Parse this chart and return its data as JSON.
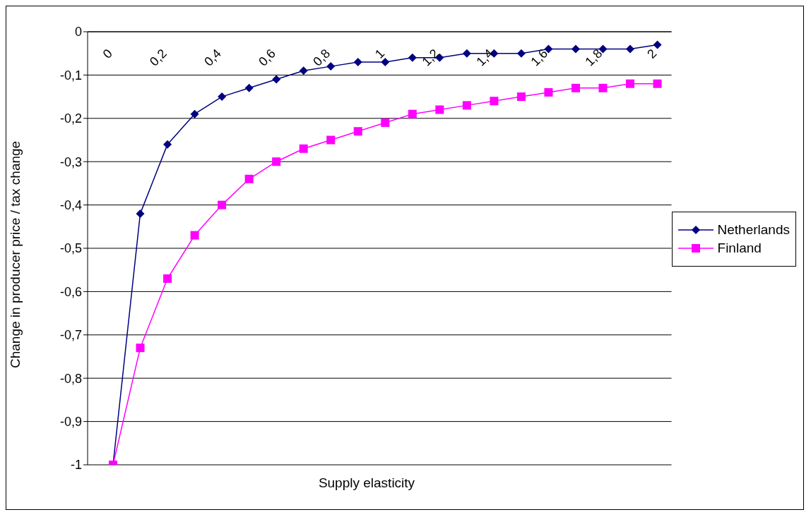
{
  "chart_data": {
    "type": "line",
    "xlabel": "Supply elasticity",
    "ylabel": "Change in producer price / tax change",
    "categories": [
      "0",
      null,
      "0,2",
      null,
      "0,4",
      null,
      "0,6",
      null,
      "0,8",
      null,
      "1",
      null,
      "1,2",
      null,
      "1,4",
      null,
      "1,6",
      null,
      "1,8",
      null,
      "2"
    ],
    "series": [
      {
        "name": "Netherlands",
        "color": "#000080",
        "marker": "diamond",
        "values": [
          -1,
          -0.42,
          -0.26,
          -0.19,
          -0.15,
          -0.13,
          -0.11,
          -0.09,
          -0.08,
          -0.07,
          -0.07,
          -0.06,
          -0.06,
          -0.05,
          -0.05,
          -0.05,
          -0.04,
          -0.04,
          -0.04,
          -0.04,
          -0.03
        ]
      },
      {
        "name": "Finland",
        "color": "#ff00ff",
        "marker": "square",
        "values": [
          -1,
          -0.73,
          -0.57,
          -0.47,
          -0.4,
          -0.34,
          -0.3,
          -0.27,
          -0.25,
          -0.23,
          -0.21,
          -0.19,
          -0.18,
          -0.17,
          -0.16,
          -0.15,
          -0.14,
          -0.13,
          -0.13,
          -0.12,
          -0.12
        ]
      }
    ],
    "ylim": [
      -1,
      0
    ],
    "yticks": [
      {
        "value": -1,
        "label": "-1"
      },
      {
        "value": -0.9,
        "label": "-0,9"
      },
      {
        "value": -0.8,
        "label": "-0,8"
      },
      {
        "value": -0.7,
        "label": "-0,7"
      },
      {
        "value": -0.6,
        "label": "-0,6"
      },
      {
        "value": -0.5,
        "label": "-0,5"
      },
      {
        "value": -0.4,
        "label": "-0,4"
      },
      {
        "value": -0.3,
        "label": "-0,3"
      },
      {
        "value": -0.2,
        "label": "-0,2"
      },
      {
        "value": -0.1,
        "label": "-0,1"
      },
      {
        "value": 0,
        "label": "0"
      }
    ],
    "grid": "y",
    "legend": "right",
    "line_style": "solid"
  }
}
